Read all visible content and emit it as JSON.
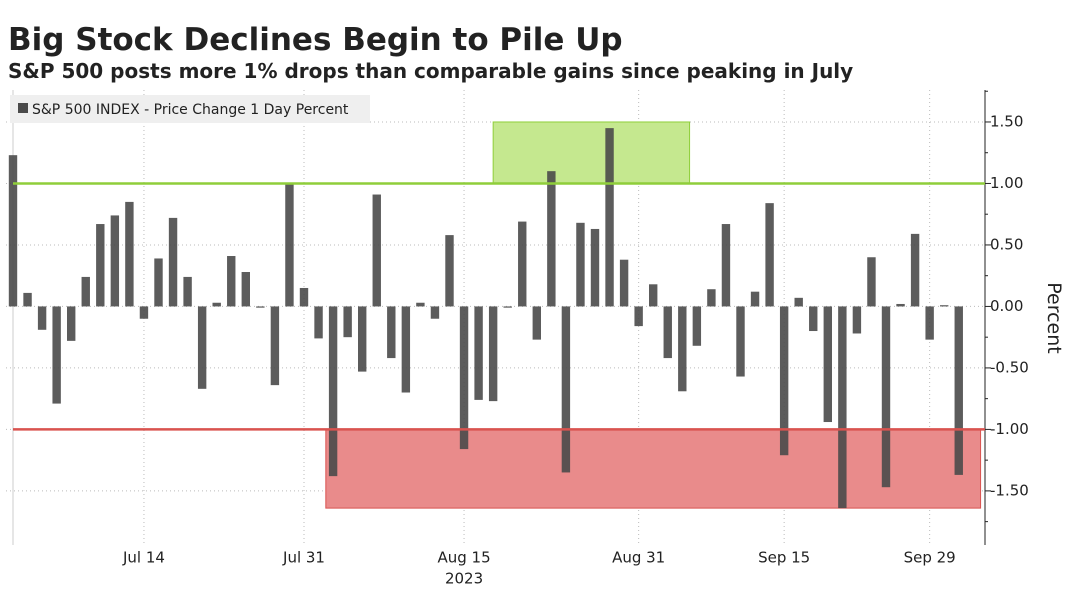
{
  "chart_data": {
    "type": "bar",
    "title": "Big Stock Declines Begin to Pile Up",
    "subtitle": "S&P 500 posts more 1% drops than comparable gains since peaking in July",
    "ylabel": "Percent",
    "year_label": "2023",
    "series": [
      {
        "name": "S&P 500 INDEX - Price Change 1 Day Percent",
        "color": "#4a4a4a",
        "values": [
          1.23,
          0.11,
          -0.19,
          -0.79,
          -0.28,
          0.24,
          0.67,
          0.74,
          0.85,
          -0.1,
          0.39,
          0.72,
          0.24,
          -0.67,
          0.03,
          0.41,
          0.28,
          -0.01,
          -0.64,
          1.0,
          0.15,
          -0.26,
          -1.38,
          -0.25,
          -0.53,
          0.91,
          -0.42,
          -0.7,
          0.03,
          -0.1,
          0.58,
          -1.16,
          -0.76,
          -0.77,
          -0.01,
          0.69,
          -0.27,
          1.1,
          -1.35,
          0.68,
          0.63,
          1.45,
          0.38,
          -0.16,
          0.18,
          -0.42,
          -0.69,
          -0.32,
          0.14,
          0.67,
          -0.57,
          0.12,
          0.84,
          -1.21,
          0.07,
          -0.2,
          -0.94,
          -1.64,
          -0.22,
          0.4,
          -1.47,
          0.02,
          0.59,
          -0.27,
          0.01,
          -1.37
        ]
      }
    ],
    "categories": [
      null,
      null,
      null,
      null,
      null,
      null,
      null,
      null,
      null,
      "Jul 14",
      null,
      null,
      null,
      null,
      null,
      null,
      null,
      null,
      null,
      null,
      "Jul 31",
      null,
      null,
      null,
      null,
      null,
      null,
      null,
      null,
      null,
      null,
      "Aug 15",
      null,
      null,
      null,
      null,
      null,
      null,
      null,
      null,
      null,
      null,
      null,
      "Aug 31",
      null,
      null,
      null,
      null,
      null,
      null,
      null,
      null,
      null,
      "Sep 15",
      null,
      null,
      null,
      null,
      null,
      null,
      null,
      null,
      null,
      "Sep 29",
      null,
      null
    ],
    "year_category": 31,
    "ylim": [
      -1.94,
      1.76
    ],
    "yticks": [
      {
        "value": 1.5,
        "label": "1.50"
      },
      {
        "value": 1.0,
        "label": "1.00"
      },
      {
        "value": 0.5,
        "label": "0.50"
      },
      {
        "value": 0,
        "label": "0.00"
      },
      {
        "value": -0.5,
        "label": "-0.50"
      },
      {
        "value": -1.0,
        "label": "-1.00"
      },
      {
        "value": -1.5,
        "label": "-1.50"
      }
    ],
    "grid": true,
    "reference_lines": [
      {
        "value": 1.0,
        "color": "#8fce3a"
      },
      {
        "value": -1.0,
        "color": "#d9534f"
      }
    ],
    "highlights": [
      {
        "start": 33,
        "end": 46.5,
        "ymin": 1.0,
        "ymax": 1.5,
        "color": "#c5e88f",
        "stroke": "#8fce3a"
      },
      {
        "start": 21.5,
        "end": 66.5,
        "ymin": -1.64,
        "ymax": -1.0,
        "color": "#e98b8b",
        "stroke": "#d9534f"
      }
    ]
  }
}
